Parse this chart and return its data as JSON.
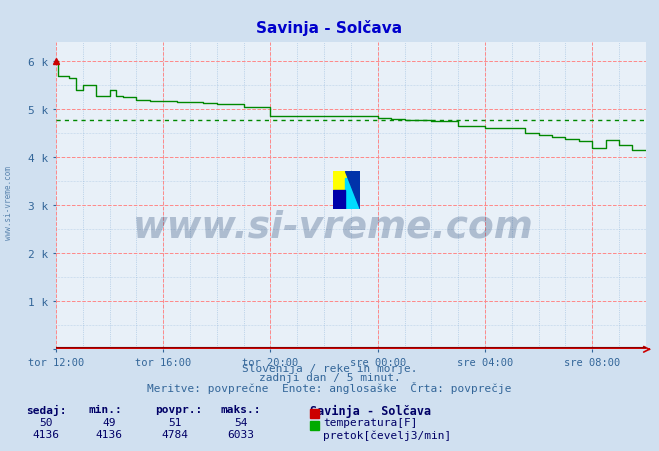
{
  "title": "Savinja - Solčava",
  "title_color": "#0000cc",
  "bg_color": "#d0e0f0",
  "plot_bg_color": "#e8f0f8",
  "grid_color_major": "#ff8888",
  "grid_color_minor": "#99bbdd",
  "x_labels": [
    "tor 12:00",
    "tor 16:00",
    "tor 20:00",
    "sre 00:00",
    "sre 04:00",
    "sre 08:00"
  ],
  "x_ticks_hours": [
    0,
    4,
    8,
    12,
    16,
    20
  ],
  "total_hours": 22,
  "y_ticks": [
    0,
    1000,
    2000,
    3000,
    4000,
    5000,
    6000
  ],
  "y_labels": [
    "",
    "1 k",
    "2 k",
    "3 k",
    "4 k",
    "5 k",
    "6 k"
  ],
  "ylim": [
    0,
    6400
  ],
  "pretok_color": "#008800",
  "temperatura_color": "#880000",
  "avg_line_color": "#008800",
  "avg_value": 4784,
  "watermark_text": "www.si-vreme.com",
  "watermark_color": "#1a3a6a",
  "watermark_alpha": 0.28,
  "subtitle1": "Slovenija / reke in morje.",
  "subtitle2": "zadnji dan / 5 minut.",
  "subtitle3": "Meritve: povprečne  Enote: anglosaške  Črta: povprečje",
  "subtitle_color": "#336699",
  "table_header": [
    "sedaj:",
    "min.:",
    "povpr.:",
    "maks.:"
  ],
  "table_color": "#000066",
  "legend_title": "Savinja - Solčava",
  "temp_sedaj": 50,
  "temp_min": 49,
  "temp_povpr": 51,
  "temp_maks": 54,
  "pretok_sedaj": 4136,
  "pretok_min": 4136,
  "pretok_povpr": 4784,
  "pretok_maks": 6033,
  "pretok_data_hours": [
    0.0,
    0.08,
    0.08,
    0.5,
    0.5,
    0.75,
    0.75,
    1.0,
    1.0,
    1.5,
    1.5,
    2.0,
    2.0,
    2.25,
    2.25,
    2.5,
    2.5,
    3.0,
    3.0,
    3.5,
    3.5,
    4.0,
    4.0,
    4.5,
    4.5,
    5.0,
    5.0,
    5.5,
    5.5,
    6.0,
    6.0,
    7.0,
    7.0,
    8.0,
    8.0,
    12.0,
    12.0,
    12.5,
    12.5,
    13.0,
    13.0,
    14.0,
    14.0,
    15.0,
    15.0,
    16.0,
    16.0,
    17.5,
    17.5,
    18.0,
    18.0,
    18.5,
    18.5,
    19.0,
    19.0,
    19.5,
    19.5,
    20.0,
    20.0,
    20.5,
    20.5,
    21.0,
    21.0,
    21.5,
    21.5,
    22.0
  ],
  "pretok_data_values": [
    6000,
    6000,
    5700,
    5700,
    5650,
    5650,
    5400,
    5400,
    5500,
    5500,
    5280,
    5280,
    5400,
    5400,
    5280,
    5280,
    5250,
    5250,
    5200,
    5200,
    5180,
    5180,
    5160,
    5160,
    5150,
    5150,
    5140,
    5140,
    5130,
    5130,
    5100,
    5100,
    5050,
    5050,
    4860,
    4860,
    4820,
    4820,
    4790,
    4790,
    4780,
    4780,
    4750,
    4750,
    4650,
    4650,
    4600,
    4600,
    4500,
    4500,
    4460,
    4460,
    4420,
    4420,
    4380,
    4380,
    4340,
    4340,
    4200,
    4200,
    4350,
    4350,
    4250,
    4250,
    4160,
    4160
  ],
  "temp_data_hours": [
    0,
    22
  ],
  "temp_data_values": [
    51,
    51
  ],
  "arrow_color": "#cc0000",
  "axis_color": "#cc0000",
  "tick_label_color": "#336699",
  "side_watermark": "www.si-vreme.com"
}
